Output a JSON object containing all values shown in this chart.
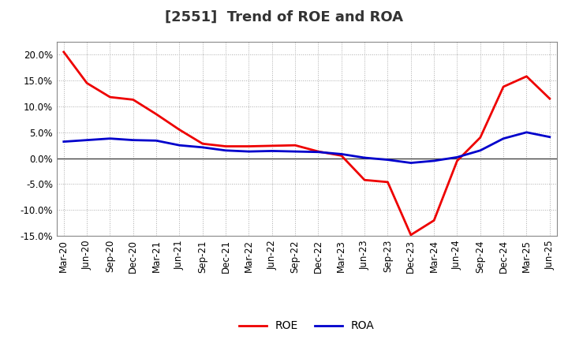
{
  "title": "[2551]  Trend of ROE and ROA",
  "x_labels": [
    "Mar-20",
    "Jun-20",
    "Sep-20",
    "Dec-20",
    "Mar-21",
    "Jun-21",
    "Sep-21",
    "Dec-21",
    "Mar-22",
    "Jun-22",
    "Sep-22",
    "Dec-22",
    "Mar-23",
    "Jun-23",
    "Sep-23",
    "Dec-23",
    "Mar-24",
    "Jun-24",
    "Sep-24",
    "Dec-24",
    "Mar-25",
    "Jun-25"
  ],
  "roe": [
    20.5,
    14.5,
    11.8,
    11.3,
    8.5,
    5.5,
    2.8,
    2.3,
    2.3,
    2.4,
    2.5,
    1.3,
    0.5,
    -4.2,
    -4.6,
    -14.8,
    -12.0,
    -0.5,
    4.0,
    13.8,
    15.8,
    11.5
  ],
  "roa": [
    3.2,
    3.5,
    3.8,
    3.5,
    3.4,
    2.5,
    2.1,
    1.5,
    1.3,
    1.4,
    1.3,
    1.2,
    0.8,
    0.1,
    -0.3,
    -0.9,
    -0.5,
    0.2,
    1.5,
    3.8,
    5.0,
    4.1
  ],
  "roe_color": "#ee0000",
  "roa_color": "#0000cc",
  "background_color": "#ffffff",
  "grid_color": "#aaaaaa",
  "ylim": [
    -15.0,
    22.5
  ],
  "yticks": [
    -15.0,
    -10.0,
    -5.0,
    0.0,
    5.0,
    10.0,
    15.0,
    20.0
  ],
  "line_width": 2.0,
  "title_fontsize": 13,
  "legend_fontsize": 10,
  "tick_fontsize": 8.5
}
